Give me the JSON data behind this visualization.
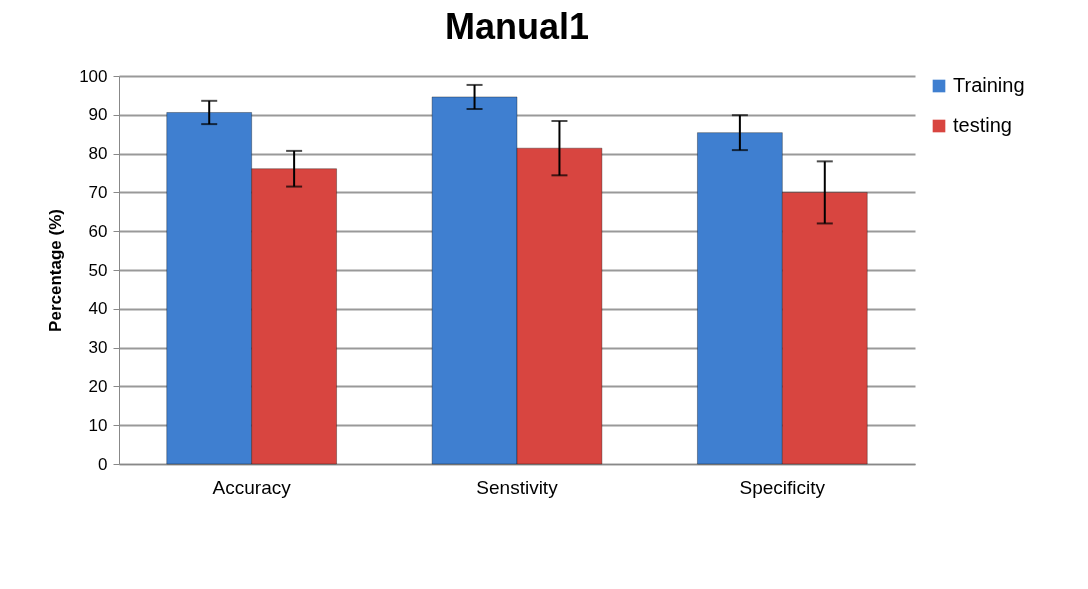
{
  "chart_data": {
    "type": "bar",
    "title": "Manual1",
    "ylabel": "Percentage (%)",
    "categories": [
      "Accuracy",
      "Senstivity",
      "Specificity"
    ],
    "series": [
      {
        "name": "Training",
        "color": "#3f7fd0",
        "values": [
          90.6,
          94.6,
          85.4
        ],
        "errors": [
          3,
          3.1,
          4.5
        ]
      },
      {
        "name": "testing",
        "color": "#d84540",
        "values": [
          76.1,
          81.4,
          70
        ],
        "errors": [
          4.6,
          7,
          8
        ]
      }
    ],
    "ylim": [
      0,
      100
    ],
    "yticks": [
      0,
      10,
      20,
      30,
      40,
      50,
      60,
      70,
      80,
      90,
      100
    ],
    "grid": "y",
    "legend": "right"
  }
}
